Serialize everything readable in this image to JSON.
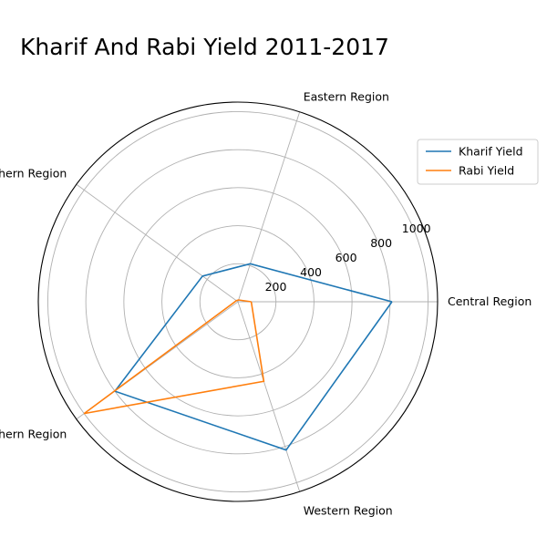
{
  "chart_data": {
    "type": "radar",
    "title": "Kharif And Rabi Yield 2011-2017",
    "categories": [
      "Central Region",
      "Eastern Region",
      "Northern Region",
      "Southern Region",
      "Western Region"
    ],
    "radial_ticks": [
      "200",
      "400",
      "600",
      "800",
      "1000"
    ],
    "rmax": 1050,
    "grid": true,
    "legend_position": "top-right",
    "series": [
      {
        "name": "Kharif Yield",
        "color": "#1f77b4",
        "values": [
          810,
          210,
          230,
          800,
          820
        ]
      },
      {
        "name": "Rabi Yield",
        "color": "#ff7f0e",
        "values": [
          70,
          10,
          10,
          1000,
          440
        ]
      }
    ]
  }
}
